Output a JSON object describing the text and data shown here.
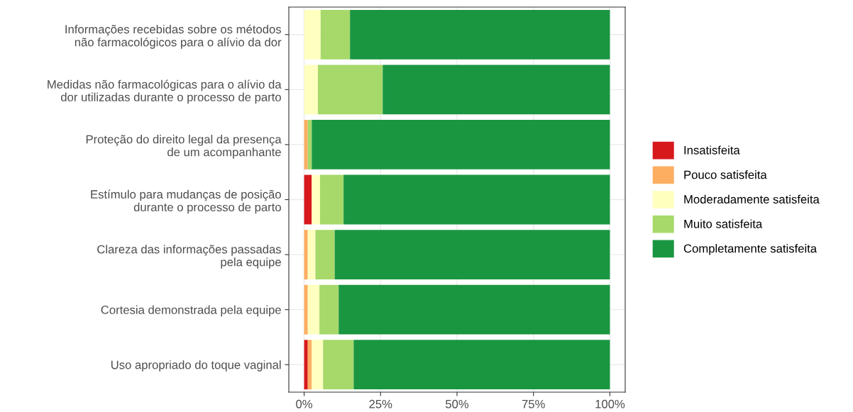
{
  "chart_data": {
    "type": "bar",
    "orientation": "horizontal",
    "stacked": true,
    "categories": [
      "Informações recebidas sobre os métodos\nnão farmacológicos para o alívio da dor",
      "Medidas não farmacológicas para o alívio da\ndor utilizadas durante o processo de parto",
      "Proteção do direito legal da presença\nde um acompanhante",
      "Estímulo para mudanças de posição\ndurante o processo de parto",
      "Clareza das informações passadas\npela equipe",
      "Cortesia demonstrada pela equipe",
      "Uso apropriado do toque vaginal"
    ],
    "series": [
      {
        "name": "Insatisfeita",
        "color": "#d7191c",
        "values": [
          0,
          0,
          0,
          2.5,
          0,
          0,
          1.2
        ]
      },
      {
        "name": "Pouco satisfeita",
        "color": "#fdae61",
        "values": [
          0,
          0,
          1.2,
          0,
          1.2,
          1.2,
          1.3
        ]
      },
      {
        "name": "Moderadamente satisfeita",
        "color": "#ffffbf",
        "values": [
          5.4,
          4.5,
          0,
          2.7,
          2.5,
          3.8,
          3.7
        ]
      },
      {
        "name": "Muito satisfeita",
        "color": "#a6d96a",
        "values": [
          9.6,
          21.2,
          1.3,
          7.7,
          6.3,
          6.3,
          10.0
        ]
      },
      {
        "name": "Completamente satisfeita",
        "color": "#1a9641",
        "values": [
          85.0,
          74.3,
          97.5,
          87.1,
          90.0,
          88.7,
          83.8
        ]
      }
    ],
    "xlim": [
      -5,
      105
    ],
    "xticks": [
      {
        "value": 0,
        "label": "0%"
      },
      {
        "value": 25,
        "label": "25%"
      },
      {
        "value": 50,
        "label": "50%"
      },
      {
        "value": 75,
        "label": "75%"
      },
      {
        "value": 100,
        "label": "100%"
      }
    ],
    "grid": true,
    "legend": "right"
  }
}
